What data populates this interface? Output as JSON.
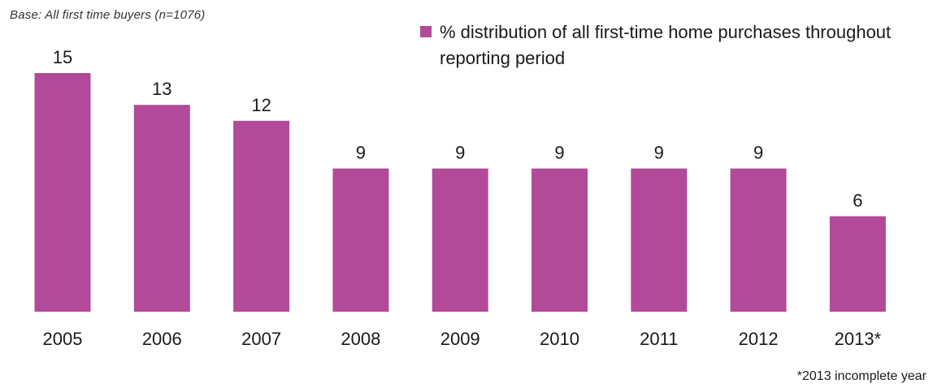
{
  "note": "Base: All first time buyers (n=1076)",
  "footnote": "*2013 incomplete year",
  "colors": {
    "bar": "#b24a99",
    "text": "#1a1a1a"
  },
  "chart_data": {
    "type": "bar",
    "title": "",
    "xlabel": "",
    "ylabel": "",
    "categories": [
      "2005",
      "2006",
      "2007",
      "2008",
      "2009",
      "2010",
      "2011",
      "2012",
      "2013*"
    ],
    "series": [
      {
        "name": "% distribution of all first-time home purchases throughout reporting period",
        "values": [
          15,
          13,
          12,
          9,
          9,
          9,
          9,
          9,
          6
        ]
      }
    ],
    "ylim": [
      0,
      15
    ],
    "grid": false,
    "legend_position": "top-right"
  }
}
